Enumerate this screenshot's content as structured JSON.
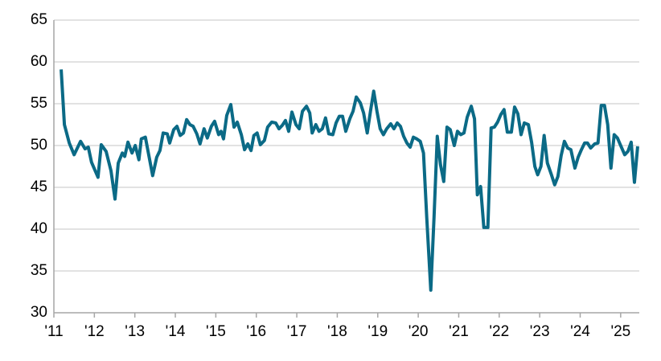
{
  "chart_data": {
    "type": "line",
    "x": [
      2011.18,
      2011.26,
      2011.38,
      2011.5,
      2011.66,
      2011.77,
      2011.85,
      2011.93,
      2012.09,
      2012.17,
      2012.29,
      2012.41,
      2012.51,
      2012.59,
      2012.69,
      2012.75,
      2012.83,
      2012.93,
      2013.01,
      2013.1,
      2013.16,
      2013.26,
      2013.44,
      2013.54,
      2013.62,
      2013.7,
      2013.8,
      2013.86,
      2013.96,
      2014.04,
      2014.12,
      2014.2,
      2014.28,
      2014.36,
      2014.44,
      2014.53,
      2014.61,
      2014.71,
      2014.79,
      2014.89,
      2014.97,
      2015.07,
      2015.13,
      2015.19,
      2015.27,
      2015.37,
      2015.45,
      2015.53,
      2015.63,
      2015.71,
      2015.79,
      2015.87,
      2015.94,
      2016.02,
      2016.1,
      2016.2,
      2016.28,
      2016.38,
      2016.48,
      2016.56,
      2016.64,
      2016.72,
      2016.8,
      2016.88,
      2016.98,
      2017.06,
      2017.14,
      2017.24,
      2017.32,
      2017.38,
      2017.47,
      2017.55,
      2017.63,
      2017.71,
      2017.79,
      2017.89,
      2017.97,
      2018.05,
      2018.13,
      2018.21,
      2018.31,
      2018.39,
      2018.47,
      2018.57,
      2018.65,
      2018.74,
      2018.82,
      2018.9,
      2018.98,
      2019.06,
      2019.14,
      2019.22,
      2019.32,
      2019.4,
      2019.48,
      2019.56,
      2019.64,
      2019.72,
      2019.8,
      2019.88,
      2019.96,
      2020.05,
      2020.13,
      2020.21,
      2020.31,
      2020.39,
      2020.47,
      2020.55,
      2020.63,
      2020.71,
      2020.79,
      2020.89,
      2020.97,
      2021.05,
      2021.13,
      2021.21,
      2021.31,
      2021.39,
      2021.46,
      2021.54,
      2021.62,
      2021.72,
      2021.8,
      2021.88,
      2021.96,
      2022.04,
      2022.12,
      2022.2,
      2022.3,
      2022.38,
      2022.46,
      2022.54,
      2022.62,
      2022.72,
      2022.8,
      2022.88,
      2022.95,
      2023.03,
      2023.11,
      2023.19,
      2023.29,
      2023.37,
      2023.45,
      2023.53,
      2023.61,
      2023.69,
      2023.77,
      2023.87,
      2023.95,
      2024.03,
      2024.11,
      2024.18,
      2024.26,
      2024.36,
      2024.44,
      2024.52,
      2024.6,
      2024.68,
      2024.76,
      2024.84,
      2024.92,
      2025.0,
      2025.1,
      2025.18,
      2025.26,
      2025.34,
      2025.42
    ],
    "series": [
      {
        "color": "#0b6a86",
        "values": [
          59.1,
          52.5,
          50.3,
          48.9,
          50.5,
          49.6,
          49.8,
          48,
          46.2,
          50.1,
          49.3,
          47,
          43.6,
          47.9,
          49.1,
          48.7,
          50.4,
          49.1,
          50,
          48.3,
          50.8,
          51,
          46.4,
          48.6,
          49.4,
          51.5,
          51.4,
          50.3,
          51.9,
          52.3,
          51.2,
          51.5,
          53.1,
          52.5,
          52.3,
          51.4,
          50.2,
          52,
          50.9,
          52.3,
          52.9,
          51.3,
          51.7,
          50.8,
          53.6,
          54.9,
          52.2,
          52.8,
          51.3,
          49.5,
          50.2,
          49.4,
          51.2,
          51.5,
          50.1,
          50.6,
          52.2,
          52.8,
          52.7,
          52,
          52.4,
          53,
          51.7,
          54,
          52.5,
          52,
          54.1,
          54.7,
          53.9,
          51.5,
          52.5,
          51.7,
          52,
          53.3,
          51.4,
          51.3,
          52.7,
          53.5,
          53.5,
          51.7,
          53.2,
          54.1,
          55.8,
          55.1,
          53.9,
          51.5,
          54.1,
          56.5,
          54.1,
          52,
          51.3,
          52,
          52.6,
          52,
          52.7,
          52.3,
          51.1,
          50.3,
          49.8,
          51,
          50.8,
          50.5,
          49.1,
          41.4,
          32.7,
          41.4,
          51.1,
          47.7,
          45.7,
          52.2,
          51.9,
          50,
          51.7,
          51.3,
          51.5,
          53.4,
          54.7,
          53.2,
          44.1,
          45.1,
          40.2,
          40.2,
          52.1,
          52.2,
          52.8,
          53.7,
          54.3,
          51.6,
          51.6,
          54.6,
          53.8,
          51.3,
          52.7,
          52.5,
          50.4,
          47.5,
          46.5,
          47.5,
          51.2,
          47.9,
          46.5,
          45.3,
          46.3,
          48.8,
          50.5,
          49.7,
          49.5,
          47.3,
          48.6,
          49.5,
          50.3,
          50.3,
          49.7,
          50.2,
          50.3,
          54.8,
          54.8,
          52.5,
          47.3,
          51.3,
          50.9,
          50,
          48.9,
          49.3,
          50.4,
          45.6,
          49.9
        ]
      }
    ],
    "xlim": [
      2011,
      2025.46
    ],
    "xticks": [
      {
        "value": 2011,
        "label": "'11"
      },
      {
        "value": 2012,
        "label": "'12"
      },
      {
        "value": 2013,
        "label": "'13"
      },
      {
        "value": 2014,
        "label": "'14"
      },
      {
        "value": 2015,
        "label": "'15"
      },
      {
        "value": 2016,
        "label": "'16"
      },
      {
        "value": 2017,
        "label": "'17"
      },
      {
        "value": 2018,
        "label": "'18"
      },
      {
        "value": 2019,
        "label": "'19"
      },
      {
        "value": 2020,
        "label": "'20"
      },
      {
        "value": 2021,
        "label": "'21"
      },
      {
        "value": 2022,
        "label": "'22"
      },
      {
        "value": 2023,
        "label": "'23"
      },
      {
        "value": 2024,
        "label": "'24"
      },
      {
        "value": 2025,
        "label": "'25"
      }
    ],
    "ylim": [
      30,
      65
    ],
    "yticks": [
      30,
      35,
      40,
      45,
      50,
      55,
      60,
      65
    ],
    "grid": true
  }
}
